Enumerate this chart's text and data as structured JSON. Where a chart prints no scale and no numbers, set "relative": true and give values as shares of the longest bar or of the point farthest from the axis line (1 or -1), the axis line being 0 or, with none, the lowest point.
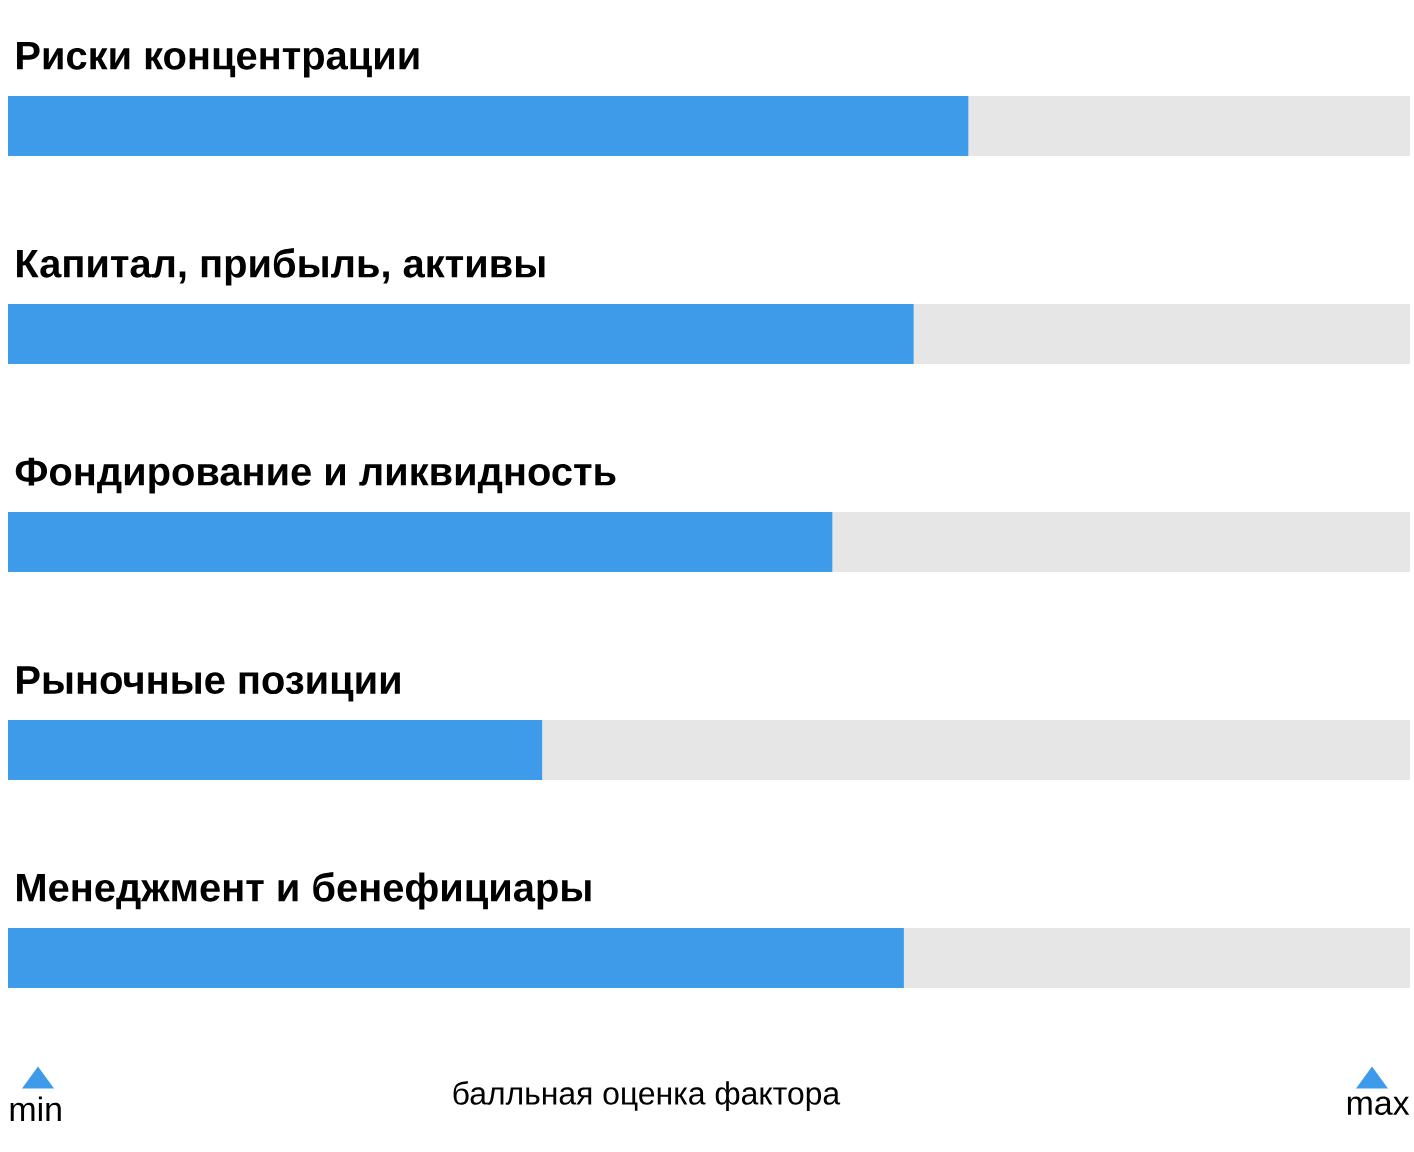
{
  "chart_data": {
    "type": "bar",
    "orientation": "horizontal",
    "stacked": true,
    "relative": true,
    "categories": [
      "Риски концентрации",
      "Капитал, прибыль, активы",
      "Фондирование и ликвидность",
      "Рыночные позиции",
      "Менеджмент и бенефициары"
    ],
    "series": [
      {
        "color": "#3d9be9",
        "values": [
          0.685,
          0.646,
          0.588,
          0.381,
          0.639
        ]
      },
      {
        "color": "#e6e6e6",
        "values": [
          0.315,
          0.354,
          0.412,
          0.619,
          0.361
        ]
      }
    ],
    "xlabel": "балльная оценка фактора",
    "annotations": [
      "min",
      "max"
    ]
  }
}
